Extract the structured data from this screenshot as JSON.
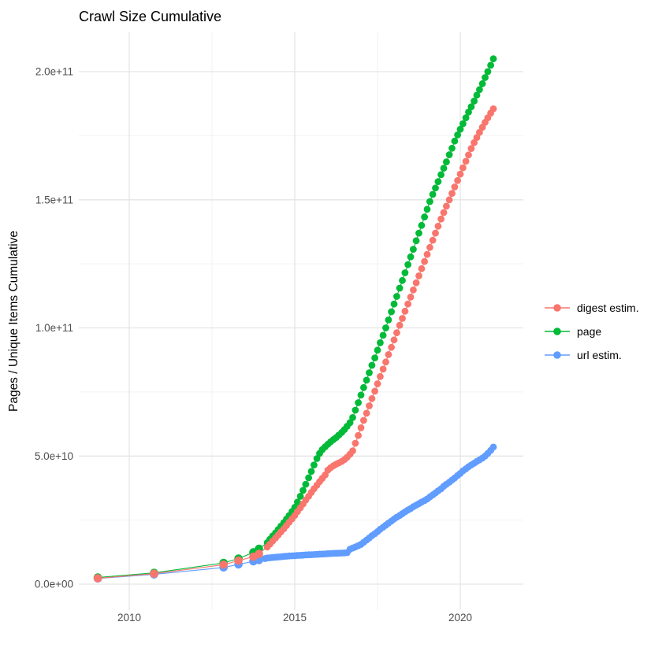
{
  "title": "Crawl Size Cumulative",
  "y_axis_title": "Pages / Unique Items Cumulative",
  "legend": {
    "items": [
      {
        "id": "digest-estim",
        "label": "digest estim.",
        "color": "#F8766D"
      },
      {
        "id": "page",
        "label": "page",
        "color": "#00BA38"
      },
      {
        "id": "url-estim",
        "label": "url estim.",
        "color": "#619CFF"
      }
    ]
  },
  "chart_data": {
    "type": "scatter",
    "title": "Crawl Size Cumulative",
    "xlabel": "",
    "ylabel": "Pages / Unique Items Cumulative",
    "grid": true,
    "legend_position": "right",
    "x_tick_years": [
      2010,
      2015,
      2020
    ],
    "x_tick_labels": [
      "2010",
      "2015",
      "2020"
    ],
    "x_minor_years": [
      2012.5,
      2017.5
    ],
    "y_tick_values_e9": [
      0,
      50,
      100,
      150,
      200
    ],
    "y_tick_labels": [
      "0.0e+00",
      "5.0e+10",
      "1.0e+11",
      "1.5e+11",
      "2.0e+11"
    ],
    "y_minor_e9": [
      25,
      75,
      125,
      175
    ],
    "x_range_years": [
      2008.5,
      2021.9
    ],
    "y_range_e9": [
      0,
      215
    ],
    "values_unit": "points are [decimal_year, cumulative_count_in_billions]",
    "draw_order": [
      1,
      2,
      0
    ],
    "series": [
      {
        "id": "digest-estim",
        "name": "digest estim.",
        "color": "#F8766D",
        "points": [
          [
            2009.05,
            2.3
          ],
          [
            2010.75,
            4.1
          ],
          [
            2012.85,
            7.6
          ],
          [
            2013.3,
            9.2
          ],
          [
            2013.75,
            10.7
          ],
          [
            2013.92,
            11.8
          ],
          [
            2014.17,
            14.5
          ],
          [
            2014.25,
            15.6
          ],
          [
            2014.33,
            16.8
          ],
          [
            2014.42,
            18
          ],
          [
            2014.5,
            19.2
          ],
          [
            2014.58,
            20.4
          ],
          [
            2014.67,
            21.6
          ],
          [
            2014.75,
            22.9
          ],
          [
            2014.83,
            24.2
          ],
          [
            2014.92,
            25.5
          ],
          [
            2015,
            26.8
          ],
          [
            2015.08,
            28.3
          ],
          [
            2015.17,
            29.8
          ],
          [
            2015.25,
            31.3
          ],
          [
            2015.33,
            32.8
          ],
          [
            2015.42,
            34.3
          ],
          [
            2015.5,
            35.8
          ],
          [
            2015.58,
            37.2
          ],
          [
            2015.67,
            38.6
          ],
          [
            2015.75,
            40
          ],
          [
            2015.83,
            41.3
          ],
          [
            2015.92,
            42.6
          ],
          [
            2016,
            44.5
          ],
          [
            2016.08,
            45.4
          ],
          [
            2016.17,
            46.2
          ],
          [
            2016.25,
            46.8
          ],
          [
            2016.33,
            47.3
          ],
          [
            2016.42,
            47.9
          ],
          [
            2016.5,
            48.6
          ],
          [
            2016.58,
            49.5
          ],
          [
            2016.67,
            50.7
          ],
          [
            2016.75,
            52
          ],
          [
            2016.83,
            55
          ],
          [
            2016.92,
            58
          ],
          [
            2017,
            61
          ],
          [
            2017.08,
            63.9
          ],
          [
            2017.17,
            66.7
          ],
          [
            2017.25,
            69.6
          ],
          [
            2017.33,
            72.4
          ],
          [
            2017.42,
            75.3
          ],
          [
            2017.5,
            78.2
          ],
          [
            2017.58,
            81
          ],
          [
            2017.67,
            83.9
          ],
          [
            2017.75,
            86.7
          ],
          [
            2017.83,
            89.6
          ],
          [
            2017.92,
            92.4
          ],
          [
            2018,
            95.3
          ],
          [
            2018.08,
            98.1
          ],
          [
            2018.17,
            101
          ],
          [
            2018.25,
            103.7
          ],
          [
            2018.33,
            106.5
          ],
          [
            2018.42,
            109.3
          ],
          [
            2018.5,
            112
          ],
          [
            2018.58,
            114.8
          ],
          [
            2018.67,
            117.6
          ],
          [
            2018.75,
            120.3
          ],
          [
            2018.83,
            123.1
          ],
          [
            2018.92,
            125.9
          ],
          [
            2019,
            128.7
          ],
          [
            2019.08,
            131.4
          ],
          [
            2019.17,
            134.2
          ],
          [
            2019.25,
            137
          ],
          [
            2019.33,
            139.7
          ],
          [
            2019.42,
            142.5
          ],
          [
            2019.5,
            145
          ],
          [
            2019.58,
            147.5
          ],
          [
            2019.67,
            150
          ],
          [
            2019.75,
            152.5
          ],
          [
            2019.83,
            155
          ],
          [
            2019.92,
            157.5
          ],
          [
            2020,
            160
          ],
          [
            2020.08,
            162.5
          ],
          [
            2020.17,
            165
          ],
          [
            2020.25,
            167.5
          ],
          [
            2020.33,
            170
          ],
          [
            2020.42,
            172.3
          ],
          [
            2020.5,
            174.3
          ],
          [
            2020.58,
            176.3
          ],
          [
            2020.67,
            178.3
          ],
          [
            2020.75,
            180.2
          ],
          [
            2020.83,
            182
          ],
          [
            2020.92,
            183.8
          ],
          [
            2021,
            185.5
          ]
        ]
      },
      {
        "id": "page",
        "name": "page",
        "color": "#00BA38",
        "points": [
          [
            2009.05,
            2.6
          ],
          [
            2010.75,
            4.4
          ],
          [
            2012.85,
            8.3
          ],
          [
            2013.3,
            10
          ],
          [
            2013.75,
            12.4
          ],
          [
            2013.92,
            13.8
          ],
          [
            2014.17,
            16.2
          ],
          [
            2014.25,
            17.5
          ],
          [
            2014.33,
            18.8
          ],
          [
            2014.42,
            20
          ],
          [
            2014.5,
            21.3
          ],
          [
            2014.58,
            22.6
          ],
          [
            2014.67,
            24
          ],
          [
            2014.75,
            25.4
          ],
          [
            2014.83,
            26.8
          ],
          [
            2014.92,
            28.4
          ],
          [
            2015,
            30
          ],
          [
            2015.08,
            32
          ],
          [
            2015.17,
            34.3
          ],
          [
            2015.25,
            36.6
          ],
          [
            2015.33,
            39
          ],
          [
            2015.42,
            41.5
          ],
          [
            2015.5,
            44
          ],
          [
            2015.58,
            46.5
          ],
          [
            2015.67,
            49
          ],
          [
            2015.75,
            51
          ],
          [
            2015.83,
            52.5
          ],
          [
            2015.92,
            53.6
          ],
          [
            2016,
            54.6
          ],
          [
            2016.08,
            55.5
          ],
          [
            2016.17,
            56.4
          ],
          [
            2016.25,
            57.2
          ],
          [
            2016.33,
            58.2
          ],
          [
            2016.42,
            59.2
          ],
          [
            2016.5,
            60.3
          ],
          [
            2016.58,
            61.6
          ],
          [
            2016.67,
            63
          ],
          [
            2016.75,
            65
          ],
          [
            2016.83,
            67.9
          ],
          [
            2016.92,
            70.8
          ],
          [
            2017,
            73.8
          ],
          [
            2017.08,
            76.7
          ],
          [
            2017.17,
            79.6
          ],
          [
            2017.25,
            82.5
          ],
          [
            2017.33,
            85.4
          ],
          [
            2017.42,
            88.3
          ],
          [
            2017.5,
            91.3
          ],
          [
            2017.58,
            94.2
          ],
          [
            2017.67,
            97.1
          ],
          [
            2017.75,
            100
          ],
          [
            2017.83,
            103.1
          ],
          [
            2017.92,
            106.3
          ],
          [
            2018,
            109.3
          ],
          [
            2018.08,
            112.3
          ],
          [
            2018.17,
            115.5
          ],
          [
            2018.25,
            118.5
          ],
          [
            2018.33,
            121.5
          ],
          [
            2018.42,
            124.7
          ],
          [
            2018.5,
            127.7
          ],
          [
            2018.58,
            130.7
          ],
          [
            2018.67,
            134
          ],
          [
            2018.75,
            137
          ],
          [
            2018.83,
            140
          ],
          [
            2018.92,
            143.3
          ],
          [
            2019,
            146.3
          ],
          [
            2019.08,
            149.3
          ],
          [
            2019.17,
            152.1
          ],
          [
            2019.25,
            154.6
          ],
          [
            2019.33,
            157.1
          ],
          [
            2019.42,
            159.8
          ],
          [
            2019.5,
            162.3
          ],
          [
            2019.58,
            164.8
          ],
          [
            2019.67,
            167.6
          ],
          [
            2019.75,
            170.1
          ],
          [
            2019.83,
            172.9
          ],
          [
            2019.92,
            175.3
          ],
          [
            2020,
            177.5
          ],
          [
            2020.08,
            179.7
          ],
          [
            2020.17,
            182
          ],
          [
            2020.25,
            184.2
          ],
          [
            2020.33,
            186.3
          ],
          [
            2020.42,
            188.5
          ],
          [
            2020.5,
            190.8
          ],
          [
            2020.58,
            193
          ],
          [
            2020.67,
            195.3
          ],
          [
            2020.75,
            197.7
          ],
          [
            2020.83,
            200
          ],
          [
            2020.92,
            202.5
          ],
          [
            2021,
            205
          ]
        ]
      },
      {
        "id": "url-estim",
        "name": "url estim.",
        "color": "#619CFF",
        "points": [
          [
            2009.05,
            2.2
          ],
          [
            2010.75,
            3.8
          ],
          [
            2012.85,
            6.5
          ],
          [
            2013.3,
            7.7
          ],
          [
            2013.75,
            8.9
          ],
          [
            2013.92,
            9.4
          ],
          [
            2014.1,
            10
          ],
          [
            2014.17,
            10.2
          ],
          [
            2014.25,
            10.3
          ],
          [
            2014.33,
            10.4
          ],
          [
            2014.42,
            10.5
          ],
          [
            2014.5,
            10.6
          ],
          [
            2014.58,
            10.7
          ],
          [
            2014.67,
            10.8
          ],
          [
            2014.75,
            10.9
          ],
          [
            2014.83,
            11
          ],
          [
            2014.92,
            11.05
          ],
          [
            2015,
            11.1
          ],
          [
            2015.08,
            11.2
          ],
          [
            2015.17,
            11.25
          ],
          [
            2015.25,
            11.3
          ],
          [
            2015.33,
            11.4
          ],
          [
            2015.42,
            11.45
          ],
          [
            2015.5,
            11.5
          ],
          [
            2015.58,
            11.55
          ],
          [
            2015.67,
            11.6
          ],
          [
            2015.75,
            11.7
          ],
          [
            2015.83,
            11.75
          ],
          [
            2015.92,
            11.8
          ],
          [
            2016,
            11.9
          ],
          [
            2016.08,
            11.95
          ],
          [
            2016.17,
            12
          ],
          [
            2016.25,
            12.05
          ],
          [
            2016.33,
            12.1
          ],
          [
            2016.42,
            12.15
          ],
          [
            2016.5,
            12.2
          ],
          [
            2016.58,
            12.3
          ],
          [
            2016.67,
            13.6
          ],
          [
            2016.75,
            14.1
          ],
          [
            2016.83,
            14.5
          ],
          [
            2016.92,
            15
          ],
          [
            2017,
            15.5
          ],
          [
            2017.08,
            16.3
          ],
          [
            2017.17,
            17.2
          ],
          [
            2017.25,
            18
          ],
          [
            2017.33,
            18.9
          ],
          [
            2017.42,
            19.7
          ],
          [
            2017.5,
            20.5
          ],
          [
            2017.58,
            21.4
          ],
          [
            2017.67,
            22.2
          ],
          [
            2017.75,
            23
          ],
          [
            2017.83,
            23.8
          ],
          [
            2017.92,
            24.6
          ],
          [
            2018,
            25.4
          ],
          [
            2018.08,
            26.1
          ],
          [
            2018.17,
            26.8
          ],
          [
            2018.25,
            27.5
          ],
          [
            2018.33,
            28.2
          ],
          [
            2018.42,
            28.9
          ],
          [
            2018.5,
            29.5
          ],
          [
            2018.58,
            30.2
          ],
          [
            2018.67,
            30.8
          ],
          [
            2018.75,
            31.4
          ],
          [
            2018.83,
            32
          ],
          [
            2018.92,
            32.6
          ],
          [
            2019,
            33.2
          ],
          [
            2019.08,
            34
          ],
          [
            2019.17,
            34.8
          ],
          [
            2019.25,
            35.6
          ],
          [
            2019.33,
            36.4
          ],
          [
            2019.42,
            37.2
          ],
          [
            2019.5,
            38.2
          ],
          [
            2019.58,
            39
          ],
          [
            2019.67,
            39.8
          ],
          [
            2019.75,
            40.6
          ],
          [
            2019.83,
            41.4
          ],
          [
            2019.92,
            42.4
          ],
          [
            2020,
            43.2
          ],
          [
            2020.08,
            44.2
          ],
          [
            2020.17,
            45
          ],
          [
            2020.25,
            45.8
          ],
          [
            2020.33,
            46.5
          ],
          [
            2020.42,
            47.2
          ],
          [
            2020.5,
            47.9
          ],
          [
            2020.58,
            48.5
          ],
          [
            2020.67,
            49.2
          ],
          [
            2020.75,
            50
          ],
          [
            2020.83,
            51
          ],
          [
            2020.92,
            52.2
          ],
          [
            2021,
            53.5
          ]
        ]
      }
    ]
  }
}
